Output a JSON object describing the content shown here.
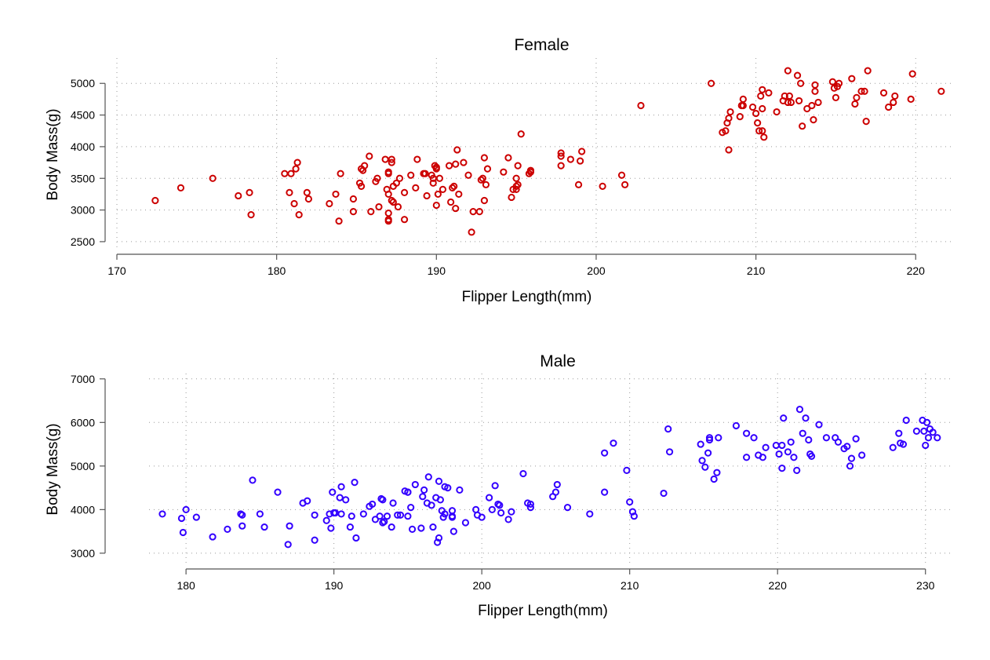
{
  "chart_data": [
    {
      "type": "scatter",
      "title": "Female",
      "xlabel": "Flipper Length(mm)",
      "ylabel": "Body Mass(g)",
      "xlim": [
        170,
        222
      ],
      "ylim": [
        2400,
        5350
      ],
      "xticks": [
        170,
        180,
        190,
        200,
        210,
        220
      ],
      "yticks": [
        2500,
        3000,
        3500,
        4000,
        4500,
        5000
      ],
      "grid": true,
      "color": "#cc0000",
      "points": [
        [
          172.4,
          3150
        ],
        [
          174,
          3350
        ],
        [
          176,
          3500
        ],
        [
          177.6,
          3225
        ],
        [
          178.3,
          3275
        ],
        [
          178.4,
          2925
        ],
        [
          180.5,
          3575
        ],
        [
          180.8,
          3275
        ],
        [
          180.9,
          3575
        ],
        [
          181.1,
          3100
        ],
        [
          181.2,
          3650
        ],
        [
          181.3,
          3750
        ],
        [
          181.4,
          2925
        ],
        [
          181.9,
          3275
        ],
        [
          182,
          3175
        ],
        [
          183.3,
          3100
        ],
        [
          183.7,
          3250
        ],
        [
          183.9,
          2825
        ],
        [
          184,
          3575
        ],
        [
          184.8,
          3175
        ],
        [
          184.8,
          2975
        ],
        [
          185.2,
          3425
        ],
        [
          185.3,
          3375
        ],
        [
          185.3,
          3650
        ],
        [
          185.4,
          3625
        ],
        [
          185.5,
          3700
        ],
        [
          185.8,
          3850
        ],
        [
          185.9,
          2975
        ],
        [
          186.2,
          3450
        ],
        [
          186.3,
          3500
        ],
        [
          186.4,
          3050
        ],
        [
          186.8,
          3800
        ],
        [
          186.9,
          3325
        ],
        [
          187,
          3575
        ],
        [
          187,
          3600
        ],
        [
          187,
          3250
        ],
        [
          187,
          2950
        ],
        [
          187,
          2850
        ],
        [
          187,
          2825
        ],
        [
          187.2,
          3800
        ],
        [
          187.2,
          3750
        ],
        [
          187.2,
          3150
        ],
        [
          187.3,
          3125
        ],
        [
          187.3,
          3375
        ],
        [
          187.5,
          3425
        ],
        [
          187.6,
          3050
        ],
        [
          187.7,
          3500
        ],
        [
          188,
          3275
        ],
        [
          188,
          2850
        ],
        [
          188.4,
          3550
        ],
        [
          188.7,
          3350
        ],
        [
          188.8,
          3800
        ],
        [
          189.2,
          3575
        ],
        [
          189.3,
          3575
        ],
        [
          189.4,
          3225
        ],
        [
          189.7,
          3550
        ],
        [
          189.8,
          3500
        ],
        [
          189.8,
          3425
        ],
        [
          189.9,
          3700
        ],
        [
          190,
          3675
        ],
        [
          190,
          3650
        ],
        [
          190,
          3075
        ],
        [
          190.1,
          3250
        ],
        [
          190.2,
          3500
        ],
        [
          190.4,
          3325
        ],
        [
          190.8,
          3700
        ],
        [
          190.9,
          3125
        ],
        [
          191,
          3350
        ],
        [
          191.1,
          3375
        ],
        [
          191.2,
          3725
        ],
        [
          191.2,
          3025
        ],
        [
          191.3,
          3950
        ],
        [
          191.4,
          3250
        ],
        [
          191.7,
          3750
        ],
        [
          192,
          3550
        ],
        [
          192.2,
          2650
        ],
        [
          192.3,
          2975
        ],
        [
          192.7,
          2975
        ],
        [
          192.8,
          3475
        ],
        [
          192.9,
          3500
        ],
        [
          193,
          3825
        ],
        [
          193,
          3150
        ],
        [
          193.1,
          3400
        ],
        [
          193.2,
          3650
        ],
        [
          194.2,
          3600
        ],
        [
          194.5,
          3825
        ],
        [
          194.7,
          3200
        ],
        [
          194.8,
          3325
        ],
        [
          195,
          3500
        ],
        [
          195,
          3325
        ],
        [
          195,
          3375
        ],
        [
          195.1,
          3400
        ],
        [
          195.1,
          3700
        ],
        [
          195.3,
          4200
        ],
        [
          195.8,
          3575
        ],
        [
          195.9,
          3625
        ],
        [
          195.9,
          3600
        ],
        [
          197.8,
          3700
        ],
        [
          197.8,
          3850
        ],
        [
          197.8,
          3900
        ],
        [
          198.4,
          3800
        ],
        [
          198.9,
          3400
        ],
        [
          199,
          3775
        ],
        [
          199.1,
          3925
        ],
        [
          200.4,
          3375
        ],
        [
          201.6,
          3550
        ],
        [
          201.8,
          3400
        ],
        [
          202.8,
          4650
        ],
        [
          207.2,
          5000
        ],
        [
          207.9,
          4225
        ],
        [
          208.1,
          4250
        ],
        [
          208.2,
          4375
        ],
        [
          208.3,
          4450
        ],
        [
          208.3,
          3950
        ],
        [
          208.4,
          4550
        ],
        [
          209,
          4475
        ],
        [
          209.1,
          4650
        ],
        [
          209.2,
          4650
        ],
        [
          209.2,
          4750
        ],
        [
          209.8,
          4625
        ],
        [
          210,
          4525
        ],
        [
          210.1,
          4375
        ],
        [
          210.2,
          4250
        ],
        [
          210.3,
          4800
        ],
        [
          210.4,
          4600
        ],
        [
          210.4,
          4250
        ],
        [
          210.4,
          4900
        ],
        [
          210.5,
          4150
        ],
        [
          210.8,
          4850
        ],
        [
          211.3,
          4550
        ],
        [
          211.7,
          4725
        ],
        [
          211.8,
          4800
        ],
        [
          212,
          4700
        ],
        [
          212,
          5200
        ],
        [
          212.1,
          4800
        ],
        [
          212.2,
          4700
        ],
        [
          212.6,
          5125
        ],
        [
          212.7,
          4725
        ],
        [
          212.8,
          5000
        ],
        [
          212.9,
          4325
        ],
        [
          213.2,
          4600
        ],
        [
          213.5,
          4650
        ],
        [
          213.6,
          4425
        ],
        [
          213.7,
          4975
        ],
        [
          213.7,
          4875
        ],
        [
          213.9,
          4700
        ],
        [
          214.8,
          5025
        ],
        [
          214.9,
          4925
        ],
        [
          215,
          4775
        ],
        [
          215.1,
          4950
        ],
        [
          215.2,
          5000
        ],
        [
          216,
          5075
        ],
        [
          216.2,
          4675
        ],
        [
          216.3,
          4775
        ],
        [
          216.6,
          4875
        ],
        [
          216.8,
          4875
        ],
        [
          216.9,
          4400
        ],
        [
          217,
          5200
        ],
        [
          218,
          4850
        ],
        [
          218.3,
          4625
        ],
        [
          218.6,
          4700
        ],
        [
          218.7,
          4800
        ],
        [
          219.7,
          4750
        ],
        [
          219.8,
          5150
        ],
        [
          221.6,
          4875
        ]
      ]
    },
    {
      "type": "scatter",
      "title": "Male",
      "xlabel": "Flipper Length(mm)",
      "ylabel": "Body Mass(g)",
      "xlim": [
        177.5,
        231.5
      ],
      "ylim": [
        2800,
        7050
      ],
      "xticks": [
        180,
        190,
        200,
        210,
        220,
        230
      ],
      "yticks": [
        3000,
        4000,
        5000,
        6000,
        7000
      ],
      "grid": true,
      "color": "#3300ff",
      "points": [
        [
          178.4,
          3900
        ],
        [
          179.7,
          3800
        ],
        [
          179.8,
          3475
        ],
        [
          180,
          4000
        ],
        [
          180.7,
          3825
        ],
        [
          181.8,
          3375
        ],
        [
          182.8,
          3550
        ],
        [
          183.7,
          3900
        ],
        [
          183.8,
          3875
        ],
        [
          183.8,
          3625
        ],
        [
          184.5,
          4675
        ],
        [
          185,
          3900
        ],
        [
          185.3,
          3600
        ],
        [
          186.2,
          4400
        ],
        [
          186.9,
          3200
        ],
        [
          187,
          3625
        ],
        [
          187.9,
          4150
        ],
        [
          188.2,
          4200
        ],
        [
          188.7,
          3875
        ],
        [
          188.7,
          3300
        ],
        [
          189.5,
          3750
        ],
        [
          189.7,
          3900
        ],
        [
          189.8,
          3575
        ],
        [
          189.9,
          4400
        ],
        [
          190,
          3925
        ],
        [
          190.1,
          3925
        ],
        [
          190.4,
          4275
        ],
        [
          190.5,
          4525
        ],
        [
          190.5,
          3900
        ],
        [
          190.8,
          4225
        ],
        [
          191.1,
          3600
        ],
        [
          191.2,
          3850
        ],
        [
          191.4,
          4625
        ],
        [
          191.5,
          3350
        ],
        [
          192,
          3900
        ],
        [
          192.4,
          4075
        ],
        [
          192.6,
          4125
        ],
        [
          192.8,
          3775
        ],
        [
          193.1,
          3850
        ],
        [
          193.2,
          4250
        ],
        [
          193.3,
          4225
        ],
        [
          193.3,
          3700
        ],
        [
          193.4,
          3725
        ],
        [
          193.6,
          3850
        ],
        [
          193.9,
          3600
        ],
        [
          194,
          4150
        ],
        [
          194.3,
          3875
        ],
        [
          194.5,
          3875
        ],
        [
          194.8,
          4425
        ],
        [
          195,
          4400
        ],
        [
          195,
          4400
        ],
        [
          195,
          3850
        ],
        [
          195.2,
          4050
        ],
        [
          195.3,
          3550
        ],
        [
          195.5,
          4575
        ],
        [
          195.9,
          3575
        ],
        [
          196,
          4300
        ],
        [
          196.1,
          4450
        ],
        [
          196.3,
          4150
        ],
        [
          196.4,
          4750
        ],
        [
          196.6,
          4100
        ],
        [
          196.7,
          3600
        ],
        [
          196.9,
          4275
        ],
        [
          197,
          3250
        ],
        [
          197.1,
          3350
        ],
        [
          197.1,
          4650
        ],
        [
          197.2,
          4225
        ],
        [
          197.3,
          3975
        ],
        [
          197.4,
          3825
        ],
        [
          197.5,
          3900
        ],
        [
          197.5,
          4525
        ],
        [
          197.7,
          4500
        ],
        [
          198,
          3975
        ],
        [
          198,
          3825
        ],
        [
          198,
          3850
        ],
        [
          198.1,
          3500
        ],
        [
          198.5,
          4450
        ],
        [
          198.9,
          3700
        ],
        [
          199.6,
          4000
        ],
        [
          199.7,
          3875
        ],
        [
          200,
          3825
        ],
        [
          200.5,
          4275
        ],
        [
          200.7,
          4000
        ],
        [
          200.9,
          4550
        ],
        [
          201.1,
          4125
        ],
        [
          201.2,
          4100
        ],
        [
          201.3,
          3925
        ],
        [
          201.8,
          3775
        ],
        [
          202,
          3950
        ],
        [
          202.8,
          4825
        ],
        [
          203.1,
          4150
        ],
        [
          203.3,
          4125
        ],
        [
          203.3,
          4050
        ],
        [
          204.8,
          4300
        ],
        [
          205,
          4400
        ],
        [
          205.1,
          4575
        ],
        [
          205.8,
          4050
        ],
        [
          207.3,
          3900
        ],
        [
          208.3,
          5300
        ],
        [
          208.3,
          4400
        ],
        [
          208.9,
          5525
        ],
        [
          209.8,
          4900
        ],
        [
          210,
          4175
        ],
        [
          210.2,
          3950
        ],
        [
          210.3,
          3850
        ],
        [
          212.3,
          4375
        ],
        [
          212.6,
          5850
        ],
        [
          212.7,
          5325
        ],
        [
          214.8,
          5500
        ],
        [
          214.9,
          5125
        ],
        [
          215.1,
          4975
        ],
        [
          215.3,
          5300
        ],
        [
          215.4,
          5600
        ],
        [
          215.4,
          5650
        ],
        [
          215.7,
          4700
        ],
        [
          215.9,
          4850
        ],
        [
          216,
          5650
        ],
        [
          217.2,
          5925
        ],
        [
          217.9,
          5200
        ],
        [
          217.9,
          5750
        ],
        [
          218.4,
          5650
        ],
        [
          218.7,
          5250
        ],
        [
          219,
          5200
        ],
        [
          219.2,
          5425
        ],
        [
          219.9,
          5475
        ],
        [
          220.1,
          5275
        ],
        [
          220.3,
          5475
        ],
        [
          220.3,
          4950
        ],
        [
          220.4,
          6100
        ],
        [
          220.7,
          5325
        ],
        [
          220.9,
          5550
        ],
        [
          221.1,
          5200
        ],
        [
          221.3,
          4900
        ],
        [
          221.5,
          6300
        ],
        [
          221.7,
          5750
        ],
        [
          221.9,
          6100
        ],
        [
          222.1,
          5600
        ],
        [
          222.2,
          5275
        ],
        [
          222.3,
          5225
        ],
        [
          222.8,
          5950
        ],
        [
          223.3,
          5650
        ],
        [
          223.9,
          5650
        ],
        [
          224.1,
          5550
        ],
        [
          224.5,
          5400
        ],
        [
          224.7,
          5450
        ],
        [
          224.9,
          5000
        ],
        [
          225,
          5175
        ],
        [
          225.3,
          5625
        ],
        [
          225.7,
          5250
        ],
        [
          227.8,
          5425
        ],
        [
          228.2,
          5750
        ],
        [
          228.3,
          5525
        ],
        [
          228.5,
          5500
        ],
        [
          228.7,
          6050
        ],
        [
          229.4,
          5800
        ],
        [
          229.8,
          6050
        ],
        [
          229.9,
          5800
        ],
        [
          230,
          5475
        ],
        [
          230.1,
          6000
        ],
        [
          230.2,
          5650
        ],
        [
          230.3,
          5850
        ],
        [
          230.5,
          5775
        ],
        [
          230.8,
          5650
        ]
      ]
    }
  ]
}
